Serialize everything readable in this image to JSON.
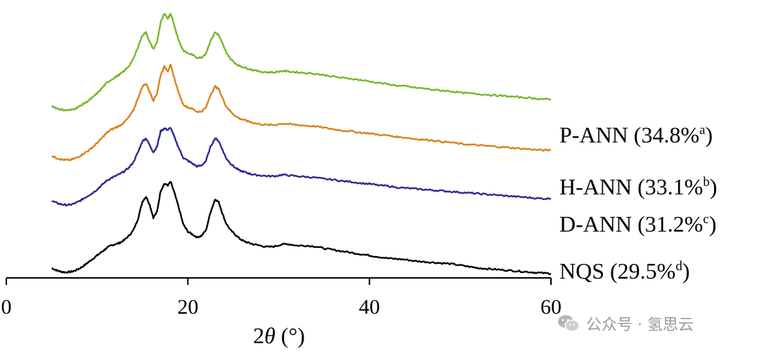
{
  "chart_data": {
    "type": "line",
    "xlabel_prefix": "2",
    "xlabel_symbol": "θ",
    "xlabel_unit": " (°)",
    "ylabel": "",
    "xlim": [
      0,
      60
    ],
    "xticks": [
      "0",
      "20",
      "40",
      "60"
    ],
    "grid": false,
    "legend": "labels at right end of each curve",
    "series": [
      {
        "name": "NQS",
        "label_value": "(29.5%",
        "label_sup": "d",
        "label_close": ")",
        "color": "#000000",
        "offset": 0,
        "points": [
          [
            5,
            10
          ],
          [
            5.5,
            7
          ],
          [
            6,
            5
          ],
          [
            6.5,
            4
          ],
          [
            7,
            4.5
          ],
          [
            7.5,
            6
          ],
          [
            8,
            9
          ],
          [
            8.5,
            13
          ],
          [
            9,
            18
          ],
          [
            9.5,
            23
          ],
          [
            10,
            28
          ],
          [
            10.5,
            33
          ],
          [
            11,
            38
          ],
          [
            11.5,
            42
          ],
          [
            12,
            44
          ],
          [
            12.5,
            46
          ],
          [
            13,
            50
          ],
          [
            13.5,
            56
          ],
          [
            14,
            64
          ],
          [
            14.5,
            80
          ],
          [
            15,
            105
          ],
          [
            15.4,
            112
          ],
          [
            15.8,
            100
          ],
          [
            16.2,
            82
          ],
          [
            16.6,
            90
          ],
          [
            17,
            120
          ],
          [
            17.4,
            130
          ],
          [
            17.8,
            128
          ],
          [
            18.1,
            133
          ],
          [
            18.5,
            118
          ],
          [
            19,
            96
          ],
          [
            19.5,
            72
          ],
          [
            20,
            62
          ],
          [
            20.5,
            58
          ],
          [
            21,
            54
          ],
          [
            21.5,
            56
          ],
          [
            22,
            64
          ],
          [
            22.5,
            90
          ],
          [
            23,
            108
          ],
          [
            23.4,
            104
          ],
          [
            23.8,
            88
          ],
          [
            24.2,
            74
          ],
          [
            24.7,
            64
          ],
          [
            25.2,
            58
          ],
          [
            25.7,
            52
          ],
          [
            26.2,
            48
          ],
          [
            26.7,
            46
          ],
          [
            27.2,
            44
          ],
          [
            28,
            42
          ],
          [
            28.8,
            40
          ],
          [
            29.6,
            41
          ],
          [
            30.4,
            44
          ],
          [
            31.2,
            44
          ],
          [
            32,
            42
          ],
          [
            33,
            42
          ],
          [
            34,
            41
          ],
          [
            35,
            38
          ],
          [
            36,
            36
          ],
          [
            37,
            34
          ],
          [
            38,
            32
          ],
          [
            39,
            30
          ],
          [
            40,
            28
          ],
          [
            41,
            26
          ],
          [
            42,
            24
          ],
          [
            43,
            23
          ],
          [
            44,
            22
          ],
          [
            45,
            20
          ],
          [
            46,
            19
          ],
          [
            47,
            18
          ],
          [
            48,
            17
          ],
          [
            49,
            16
          ],
          [
            50,
            14
          ],
          [
            51,
            12
          ],
          [
            52,
            10
          ],
          [
            53,
            9
          ],
          [
            54,
            8
          ],
          [
            55,
            7
          ],
          [
            56,
            6
          ],
          [
            57,
            5
          ],
          [
            58,
            4
          ],
          [
            59,
            3
          ],
          [
            60,
            2
          ]
        ]
      },
      {
        "name": "D-ANN",
        "label_value": "(31.2%",
        "label_sup": "c",
        "label_close": ")",
        "color": "#2b2b8f",
        "offset": 93,
        "points": [
          [
            5,
            13
          ],
          [
            5.5,
            10
          ],
          [
            6,
            8
          ],
          [
            6.5,
            7
          ],
          [
            7,
            7
          ],
          [
            7.5,
            9
          ],
          [
            8,
            12
          ],
          [
            8.5,
            16
          ],
          [
            9,
            20
          ],
          [
            9.5,
            24
          ],
          [
            10,
            29
          ],
          [
            10.5,
            35
          ],
          [
            11,
            41
          ],
          [
            11.5,
            45
          ],
          [
            12,
            48
          ],
          [
            12.5,
            51
          ],
          [
            13,
            55
          ],
          [
            13.5,
            60
          ],
          [
            14,
            68
          ],
          [
            14.5,
            82
          ],
          [
            15,
            98
          ],
          [
            15.4,
            102
          ],
          [
            15.8,
            92
          ],
          [
            16.2,
            82
          ],
          [
            16.6,
            90
          ],
          [
            17,
            112
          ],
          [
            17.4,
            116
          ],
          [
            17.8,
            114
          ],
          [
            18.1,
            117
          ],
          [
            18.5,
            104
          ],
          [
            19,
            88
          ],
          [
            19.5,
            74
          ],
          [
            20,
            70
          ],
          [
            20.5,
            66
          ],
          [
            21,
            62
          ],
          [
            21.5,
            63
          ],
          [
            22,
            70
          ],
          [
            22.5,
            90
          ],
          [
            23,
            102
          ],
          [
            23.4,
            98
          ],
          [
            23.8,
            86
          ],
          [
            24.2,
            74
          ],
          [
            24.7,
            66
          ],
          [
            25.2,
            60
          ],
          [
            25.7,
            56
          ],
          [
            26.2,
            54
          ],
          [
            26.7,
            52
          ],
          [
            27.2,
            50
          ],
          [
            28,
            49
          ],
          [
            28.8,
            48
          ],
          [
            29.6,
            48
          ],
          [
            30.4,
            50
          ],
          [
            31.2,
            49
          ],
          [
            32,
            48
          ],
          [
            33,
            47
          ],
          [
            34,
            46
          ],
          [
            35,
            44
          ],
          [
            36,
            43
          ],
          [
            37,
            41
          ],
          [
            38,
            40
          ],
          [
            39,
            38
          ],
          [
            40,
            37
          ],
          [
            41,
            35
          ],
          [
            42,
            34
          ],
          [
            43,
            32
          ],
          [
            44,
            31
          ],
          [
            45,
            30
          ],
          [
            46,
            29
          ],
          [
            47,
            28
          ],
          [
            48,
            27
          ],
          [
            49,
            26
          ],
          [
            50,
            25
          ],
          [
            51,
            24
          ],
          [
            52,
            23
          ],
          [
            53,
            22
          ],
          [
            54,
            21
          ],
          [
            55,
            20
          ],
          [
            56,
            19
          ],
          [
            57,
            18
          ],
          [
            58,
            17
          ],
          [
            59,
            16
          ],
          [
            60,
            16
          ]
        ]
      },
      {
        "name": "H-ANN",
        "label_value": "(33.1%",
        "label_sup": "b",
        "label_close": ")",
        "color": "#d9821c",
        "offset": 157,
        "points": [
          [
            5,
            13
          ],
          [
            5.5,
            10
          ],
          [
            6,
            8
          ],
          [
            6.5,
            7
          ],
          [
            7,
            7
          ],
          [
            7.5,
            9
          ],
          [
            8,
            12
          ],
          [
            8.5,
            16
          ],
          [
            9,
            20
          ],
          [
            9.5,
            25
          ],
          [
            10,
            31
          ],
          [
            10.5,
            38
          ],
          [
            11,
            45
          ],
          [
            11.5,
            50
          ],
          [
            12,
            53
          ],
          [
            12.5,
            56
          ],
          [
            13,
            61
          ],
          [
            13.5,
            68
          ],
          [
            14,
            78
          ],
          [
            14.5,
            95
          ],
          [
            15,
            112
          ],
          [
            15.4,
            116
          ],
          [
            15.8,
            104
          ],
          [
            16.2,
            92
          ],
          [
            16.6,
            102
          ],
          [
            17,
            128
          ],
          [
            17.4,
            140
          ],
          [
            17.8,
            134
          ],
          [
            18.1,
            142
          ],
          [
            18.5,
            124
          ],
          [
            19,
            102
          ],
          [
            19.5,
            86
          ],
          [
            20,
            82
          ],
          [
            20.5,
            80
          ],
          [
            21,
            76
          ],
          [
            21.5,
            76
          ],
          [
            22,
            82
          ],
          [
            22.5,
            100
          ],
          [
            23,
            112
          ],
          [
            23.4,
            108
          ],
          [
            23.8,
            96
          ],
          [
            24.2,
            84
          ],
          [
            24.7,
            76
          ],
          [
            25.2,
            70
          ],
          [
            25.7,
            66
          ],
          [
            26.2,
            64
          ],
          [
            26.7,
            62
          ],
          [
            27.2,
            60
          ],
          [
            28,
            58
          ],
          [
            28.8,
            57
          ],
          [
            29.6,
            57
          ],
          [
            30.4,
            59
          ],
          [
            31.2,
            58
          ],
          [
            32,
            57
          ],
          [
            33,
            56
          ],
          [
            34,
            55
          ],
          [
            35,
            53
          ],
          [
            36,
            51
          ],
          [
            37,
            49
          ],
          [
            38,
            48
          ],
          [
            39,
            46
          ],
          [
            40,
            45
          ],
          [
            41,
            43
          ],
          [
            42,
            42
          ],
          [
            43,
            40
          ],
          [
            44,
            39
          ],
          [
            45,
            37
          ],
          [
            46,
            36
          ],
          [
            47,
            35
          ],
          [
            48,
            33
          ],
          [
            49,
            32
          ],
          [
            50,
            30
          ],
          [
            51,
            29
          ],
          [
            52,
            28
          ],
          [
            53,
            27
          ],
          [
            54,
            26
          ],
          [
            55,
            25
          ],
          [
            56,
            24
          ],
          [
            57,
            23
          ],
          [
            58,
            22
          ],
          [
            59,
            21
          ],
          [
            60,
            21
          ]
        ]
      },
      {
        "name": "P-ANN",
        "label_value": "(34.8%",
        "label_sup": "a",
        "label_close": ")",
        "color": "#74b828",
        "offset": 228,
        "points": [
          [
            5,
            13
          ],
          [
            5.5,
            10
          ],
          [
            6,
            8
          ],
          [
            6.5,
            7
          ],
          [
            7,
            7
          ],
          [
            7.5,
            9
          ],
          [
            8,
            12
          ],
          [
            8.5,
            16
          ],
          [
            9,
            20
          ],
          [
            9.5,
            25
          ],
          [
            10,
            31
          ],
          [
            10.5,
            38
          ],
          [
            11,
            45
          ],
          [
            11.5,
            50
          ],
          [
            12,
            54
          ],
          [
            12.5,
            58
          ],
          [
            13,
            63
          ],
          [
            13.5,
            70
          ],
          [
            14,
            80
          ],
          [
            14.5,
            97
          ],
          [
            15,
            114
          ],
          [
            15.4,
            118
          ],
          [
            15.8,
            104
          ],
          [
            16.2,
            94
          ],
          [
            16.6,
            104
          ],
          [
            17,
            132
          ],
          [
            17.4,
            144
          ],
          [
            17.8,
            138
          ],
          [
            18.1,
            145
          ],
          [
            18.5,
            128
          ],
          [
            19,
            106
          ],
          [
            19.5,
            92
          ],
          [
            20,
            88
          ],
          [
            20.5,
            86
          ],
          [
            21,
            82
          ],
          [
            21.5,
            82
          ],
          [
            22,
            88
          ],
          [
            22.5,
            106
          ],
          [
            23,
            118
          ],
          [
            23.4,
            114
          ],
          [
            23.8,
            102
          ],
          [
            24.2,
            90
          ],
          [
            24.7,
            80
          ],
          [
            25.2,
            74
          ],
          [
            25.7,
            70
          ],
          [
            26.2,
            68
          ],
          [
            26.7,
            66
          ],
          [
            27.2,
            64
          ],
          [
            28,
            62
          ],
          [
            28.8,
            61
          ],
          [
            29.6,
            61
          ],
          [
            30.4,
            63
          ],
          [
            31.2,
            62
          ],
          [
            32,
            61
          ],
          [
            33,
            60
          ],
          [
            34,
            59
          ],
          [
            35,
            57
          ],
          [
            36,
            55
          ],
          [
            37,
            53
          ],
          [
            38,
            52
          ],
          [
            39,
            50
          ],
          [
            40,
            48
          ],
          [
            41,
            46
          ],
          [
            42,
            44
          ],
          [
            43,
            42
          ],
          [
            44,
            41
          ],
          [
            45,
            39
          ],
          [
            46,
            38
          ],
          [
            47,
            36
          ],
          [
            48,
            35
          ],
          [
            49,
            34
          ],
          [
            50,
            32
          ],
          [
            51,
            31
          ],
          [
            52,
            30
          ],
          [
            53,
            29
          ],
          [
            54,
            28
          ],
          [
            55,
            27
          ],
          [
            56,
            26
          ],
          [
            57,
            25
          ],
          [
            58,
            24
          ],
          [
            59,
            23
          ],
          [
            60,
            22
          ]
        ]
      }
    ]
  },
  "watermark": {
    "text": "公众号 · 氢思云",
    "icon": "wechat-icon"
  }
}
